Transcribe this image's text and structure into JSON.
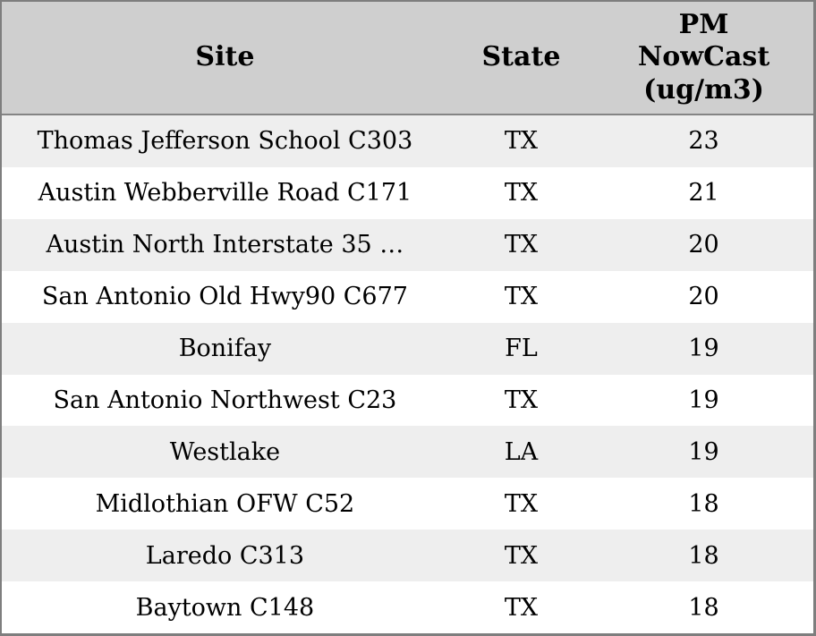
{
  "table": {
    "columns": [
      {
        "key": "site",
        "label": "Site"
      },
      {
        "key": "state",
        "label": "State"
      },
      {
        "key": "pm_nowcast",
        "label": "PM NowCast (ug/m3)",
        "label_lines": [
          "PM",
          "NowCast",
          "(ug/m3)"
        ]
      }
    ],
    "rows": [
      {
        "site": "Thomas Jefferson School C303",
        "state": "TX",
        "pm": "23"
      },
      {
        "site": "Austin Webberville Road C171",
        "state": "TX",
        "pm": "21"
      },
      {
        "site": "Austin North Interstate 35 …",
        "state": "TX",
        "pm": "20"
      },
      {
        "site": "San Antonio Old Hwy90 C677",
        "state": "TX",
        "pm": "20"
      },
      {
        "site": "Bonifay",
        "state": "FL",
        "pm": "19"
      },
      {
        "site": "San Antonio Northwest C23",
        "state": "TX",
        "pm": "19"
      },
      {
        "site": "Westlake",
        "state": "LA",
        "pm": "19"
      },
      {
        "site": "Midlothian OFW C52",
        "state": "TX",
        "pm": "18"
      },
      {
        "site": "Laredo C313",
        "state": "TX",
        "pm": "18"
      },
      {
        "site": "Baytown C148",
        "state": "TX",
        "pm": "18"
      }
    ]
  },
  "colors": {
    "header_bg": "#cfcfcf",
    "row_alt_bg": "#eeeeee",
    "row_bg": "#ffffff",
    "border": "#7e7e7e",
    "divider": "#848484",
    "text": "#000000"
  },
  "chart_data": {
    "type": "table",
    "title": "",
    "columns": [
      "Site",
      "State",
      "PM NowCast (ug/m3)"
    ],
    "rows": [
      [
        "Thomas Jefferson School C303",
        "TX",
        23
      ],
      [
        "Austin Webberville Road C171",
        "TX",
        21
      ],
      [
        "Austin North Interstate 35 …",
        "TX",
        20
      ],
      [
        "San Antonio Old Hwy90 C677",
        "TX",
        20
      ],
      [
        "Bonifay",
        "FL",
        19
      ],
      [
        "San Antonio Northwest C23",
        "TX",
        19
      ],
      [
        "Westlake",
        "LA",
        19
      ],
      [
        "Midlothian OFW C52",
        "TX",
        18
      ],
      [
        "Laredo C313",
        "TX",
        18
      ],
      [
        "Baytown C148",
        "TX",
        18
      ]
    ],
    "layout_hints": {
      "sorted_by": "PM NowCast (ug/m3) descending",
      "striped_rows": true,
      "text_align": "center"
    }
  }
}
